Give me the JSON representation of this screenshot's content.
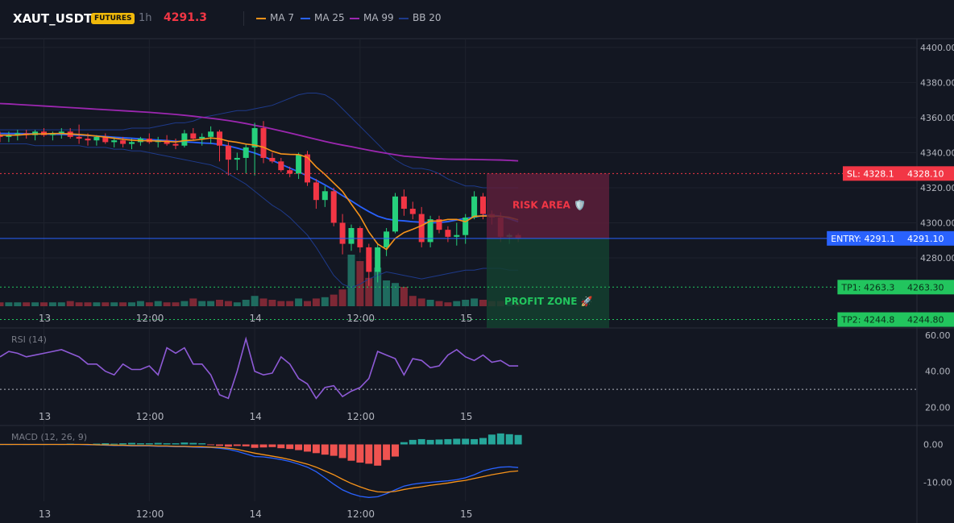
{
  "header": {
    "symbol": "XAUT_USDT",
    "badge": "FUTURES",
    "timeframe": "1h",
    "price": "4291.3",
    "legend": [
      {
        "label": "MA 7",
        "color": "#f7931a"
      },
      {
        "label": "MA 25",
        "color": "#2962ff"
      },
      {
        "label": "MA 99",
        "color": "#9c27b0"
      },
      {
        "label": "BB 20",
        "color": "#1e3a8a"
      }
    ]
  },
  "colors": {
    "up": "#26d07c",
    "down": "#f23645",
    "vol_up": "#1f6b5f",
    "vol_down": "#7d2835",
    "bg": "#131722"
  },
  "chart_data": [
    {
      "type": "candlestick",
      "panel": "price",
      "ylim": [
        4240,
        4405
      ],
      "y_ticks": [
        "4400.00",
        "4380.00",
        "4360.00",
        "4340.00",
        "4320.00",
        "4300.00",
        "4280.00"
      ],
      "x_ticks": [
        "13",
        "12:00",
        "14",
        "12:00",
        "15"
      ],
      "x_tick_index": [
        5,
        17,
        29,
        41,
        53
      ],
      "candles": [
        [
          4350,
          4352,
          4346,
          4349
        ],
        [
          4349,
          4352,
          4346,
          4350
        ],
        [
          4350,
          4353,
          4347,
          4351
        ],
        [
          4351,
          4353,
          4348,
          4350
        ],
        [
          4350,
          4353,
          4347,
          4352
        ],
        [
          4352,
          4354,
          4349,
          4350
        ],
        [
          4350,
          4352,
          4347,
          4351
        ],
        [
          4351,
          4354,
          4348,
          4352
        ],
        [
          4352,
          4354,
          4348,
          4349
        ],
        [
          4349,
          4356,
          4345,
          4348
        ],
        [
          4348,
          4351,
          4344,
          4347
        ],
        [
          4347,
          4350,
          4344,
          4349
        ],
        [
          4349,
          4351,
          4345,
          4346
        ],
        [
          4346,
          4349,
          4343,
          4347
        ],
        [
          4347,
          4349,
          4343,
          4345
        ],
        [
          4345,
          4348,
          4342,
          4346
        ],
        [
          4346,
          4349,
          4344,
          4348
        ],
        [
          4348,
          4351,
          4345,
          4346
        ],
        [
          4346,
          4349,
          4343,
          4347
        ],
        [
          4347,
          4350,
          4344,
          4345
        ],
        [
          4345,
          4348,
          4342,
          4344
        ],
        [
          4344,
          4353,
          4343,
          4351
        ],
        [
          4351,
          4354,
          4347,
          4348
        ],
        [
          4348,
          4351,
          4344,
          4349
        ],
        [
          4349,
          4355,
          4345,
          4352
        ],
        [
          4352,
          4353,
          4335,
          4344
        ],
        [
          4344,
          4346,
          4327,
          4336
        ],
        [
          4336,
          4340,
          4330,
          4337
        ],
        [
          4337,
          4345,
          4328,
          4343
        ],
        [
          4343,
          4357,
          4327,
          4354
        ],
        [
          4354,
          4358,
          4334,
          4337
        ],
        [
          4337,
          4340,
          4334,
          4335
        ],
        [
          4335,
          4337,
          4329,
          4330
        ],
        [
          4330,
          4332,
          4326,
          4328
        ],
        [
          4328,
          4340,
          4325,
          4339
        ],
        [
          4339,
          4341,
          4321,
          4323
        ],
        [
          4323,
          4325,
          4308,
          4313
        ],
        [
          4313,
          4321,
          4309,
          4318
        ],
        [
          4318,
          4320,
          4298,
          4300
        ],
        [
          4300,
          4305,
          4282,
          4288
        ],
        [
          4288,
          4299,
          4284,
          4297
        ],
        [
          4297,
          4298,
          4283,
          4286
        ],
        [
          4286,
          4288,
          4264,
          4272
        ],
        [
          4272,
          4288,
          4266,
          4286
        ],
        [
          4286,
          4297,
          4281,
          4295
        ],
        [
          4295,
          4317,
          4294,
          4315
        ],
        [
          4315,
          4319,
          4304,
          4308
        ],
        [
          4308,
          4312,
          4302,
          4305
        ],
        [
          4305,
          4309,
          4286,
          4289
        ],
        [
          4289,
          4304,
          4286,
          4302
        ],
        [
          4302,
          4304,
          4294,
          4296
        ],
        [
          4296,
          4298,
          4289,
          4292
        ],
        [
          4292,
          4300,
          4287,
          4293
        ],
        [
          4293,
          4305,
          4288,
          4303
        ],
        [
          4303,
          4318,
          4302,
          4315
        ],
        [
          4315,
          4317,
          4302,
          4305
        ],
        [
          4305,
          4307,
          4299,
          4303
        ],
        [
          4303,
          4306,
          4289,
          4292
        ],
        [
          4292,
          4294,
          4288,
          4293
        ],
        [
          4293,
          4294,
          4289,
          4291
        ]
      ],
      "ma7": [
        4350,
        4350,
        4350,
        4350.4,
        4350.6,
        4350.7,
        4350.9,
        4350.9,
        4350.7,
        4350.4,
        4350,
        4349.4,
        4348.9,
        4348.2,
        4347.6,
        4347.1,
        4346.8,
        4346.8,
        4346.6,
        4346.4,
        4346.1,
        4346.9,
        4347.1,
        4347.6,
        4348.4,
        4347.9,
        4346.6,
        4345.9,
        4344.9,
        4344.3,
        4343.1,
        4340.8,
        4339.3,
        4339,
        4338.9,
        4337.3,
        4331.9,
        4327.6,
        4322.7,
        4317.9,
        4310.7,
        4303.7,
        4294.7,
        4287.9,
        4284.8,
        4291.1,
        4294.4,
        4296.3,
        4298.4,
        4301,
        4301,
        4301.9,
        4301.9,
        4300.6,
        4303.7,
        4303.9,
        4303.8,
        4303.7,
        4303.1,
        4301.7
      ],
      "ma25": [
        4351,
        4350.9,
        4350.9,
        4350.8,
        4350.7,
        4350.6,
        4350.5,
        4350.4,
        4350.2,
        4350,
        4349.8,
        4349.5,
        4349.2,
        4348.8,
        4348.5,
        4348.2,
        4347.9,
        4347.5,
        4347.2,
        4346.9,
        4346.5,
        4346.2,
        4345.9,
        4345.5,
        4345.3,
        4344.7,
        4343.8,
        4342.6,
        4341.2,
        4339.8,
        4337.9,
        4335.6,
        4333.4,
        4331.2,
        4329.1,
        4326.7,
        4324.3,
        4321.6,
        4318.7,
        4315.5,
        4312.5,
        4309.3,
        4306.4,
        4303.8,
        4302.2,
        4301.4,
        4301.1,
        4300.6,
        4300.3,
        4300,
        4300.1,
        4300.7,
        4301.6,
        4302.5,
        4303.2,
        4304.1,
        4304.3,
        4303.8,
        4302.3,
        4300.6
      ],
      "ma99": [
        4368,
        4367.8,
        4367.5,
        4367.2,
        4366.9,
        4366.6,
        4366.3,
        4366,
        4365.7,
        4365.4,
        4365.1,
        4364.8,
        4364.5,
        4364.2,
        4363.9,
        4363.6,
        4363.3,
        4363,
        4362.6,
        4362.2,
        4361.8,
        4361.3,
        4360.8,
        4360.2,
        4359.6,
        4359,
        4358.3,
        4357.5,
        4356.6,
        4355.6,
        4354.6,
        4353.5,
        4352.4,
        4351.2,
        4350,
        4348.8,
        4347.6,
        4346.4,
        4345.3,
        4344.3,
        4343.4,
        4342.4,
        4341.4,
        4340.5,
        4339.6,
        4338.8,
        4338,
        4337.6,
        4337.2,
        4336.8,
        4336.5,
        4336.3,
        4336.2,
        4336.2,
        4336.1,
        4336,
        4335.9,
        4335.8,
        4335.6,
        4335.3
      ],
      "bb_upper": [
        4353,
        4353,
        4353,
        4353,
        4353,
        4353,
        4353,
        4353,
        4353,
        4353,
        4353,
        4353,
        4353,
        4353,
        4353,
        4354,
        4354,
        4354,
        4355,
        4356,
        4357,
        4357,
        4358,
        4360,
        4361,
        4362,
        4363,
        4364,
        4364,
        4365,
        4366,
        4367,
        4369,
        4371,
        4373,
        4374,
        4374,
        4373,
        4370,
        4365,
        4360,
        4355,
        4350,
        4345,
        4340,
        4336,
        4333,
        4331,
        4331,
        4330,
        4328,
        4325,
        4323,
        4321,
        4321,
        4320,
        4320,
        4320,
        4320,
        4320
      ],
      "bb_lower": [
        4345,
        4345,
        4345,
        4345,
        4344,
        4344,
        4344,
        4344,
        4344,
        4344,
        4343,
        4343,
        4343,
        4342,
        4342,
        4341,
        4341,
        4340,
        4339,
        4338,
        4337,
        4336,
        4335,
        4334,
        4333,
        4331,
        4328,
        4325,
        4322,
        4318,
        4314,
        4310,
        4307,
        4303,
        4298,
        4293,
        4286,
        4278,
        4270,
        4265,
        4263,
        4265,
        4268,
        4270,
        4272,
        4271,
        4270,
        4269,
        4268,
        4269,
        4270,
        4271,
        4272,
        4273,
        4273,
        4274,
        4274,
        4274,
        4273,
        4273
      ],
      "volume": [
        3,
        3,
        3,
        3,
        3,
        3,
        3,
        3,
        4,
        3,
        3,
        3,
        3,
        3,
        3,
        3,
        4,
        3,
        4,
        3,
        3,
        4,
        6,
        4,
        4,
        5,
        4,
        3,
        5,
        8,
        6,
        5,
        4,
        4,
        6,
        4,
        6,
        7,
        9,
        13,
        40,
        35,
        22,
        30,
        20,
        18,
        15,
        8,
        6,
        5,
        4,
        3,
        4,
        5,
        6,
        5,
        4,
        4,
        3,
        3
      ],
      "levels": [
        {
          "name": "SL",
          "value": 4328.1,
          "label": "SL: 4328.1",
          "price": "4328.10",
          "color": "#f23645",
          "style": "dotted"
        },
        {
          "name": "ENTRY",
          "value": 4291.1,
          "label": "ENTRY: 4291.1",
          "price": "4291.10",
          "color": "#2962ff",
          "style": "solid"
        },
        {
          "name": "TP1",
          "value": 4263.3,
          "label": "TP1: 4263.3",
          "price": "4263.30",
          "color": "#22c55e",
          "style": "dotted"
        },
        {
          "name": "TP2",
          "value": 4244.8,
          "label": "TP2: 4244.8",
          "price": "4244.80",
          "color": "#22c55e",
          "style": "dotted"
        }
      ],
      "risk_label": "RISK AREA 🛡️",
      "profit_label": "PROFIT ZONE 🚀"
    },
    {
      "type": "line",
      "panel": "rsi",
      "title": "RSI (14)",
      "ylim": [
        18,
        64
      ],
      "y_ticks": [
        "60.00",
        "40.00",
        "20.00"
      ],
      "level": 30,
      "x_ticks": [
        "13",
        "12:00",
        "14",
        "12:00",
        "15"
      ],
      "values": [
        48,
        51,
        50,
        48,
        49,
        50,
        51,
        52,
        50,
        48,
        44,
        44,
        40,
        38,
        44,
        41,
        41,
        43,
        38,
        53,
        50,
        53,
        44,
        44,
        38,
        27,
        25,
        40,
        58,
        40,
        38,
        39,
        48,
        44,
        36,
        33,
        25,
        31,
        32,
        26,
        29,
        31,
        36,
        51,
        49,
        47,
        38,
        47,
        46,
        42,
        43,
        49,
        52,
        48,
        46,
        49,
        45,
        46,
        43,
        43
      ]
    },
    {
      "type": "bar",
      "panel": "macd",
      "title": "MACD (12, 26, 9)",
      "ylim": [
        -15,
        5
      ],
      "y_ticks": [
        "0.00",
        "-10.00"
      ],
      "x_ticks": [
        "13",
        "12:00",
        "14",
        "12:00",
        "15"
      ],
      "histogram": [
        0,
        0,
        0.1,
        0,
        0.1,
        0,
        0.1,
        0,
        0.2,
        0.1,
        0.1,
        0.2,
        0.3,
        0.2,
        0.3,
        0.4,
        0.3,
        0.3,
        0.4,
        0.3,
        0.3,
        0.5,
        0.4,
        0.3,
        -0.2,
        -0.4,
        -0.6,
        -0.4,
        -0.5,
        -0.9,
        -0.8,
        -0.7,
        -1.0,
        -1.2,
        -1.5,
        -1.9,
        -2.3,
        -2.7,
        -3.0,
        -3.6,
        -4.3,
        -4.8,
        -5.1,
        -5.6,
        -4.1,
        -3.2,
        0.6,
        1.2,
        1.4,
        1.2,
        1.3,
        1.4,
        1.5,
        1.5,
        1.4,
        1.7,
        2.6,
        2.9,
        2.7,
        2.5
      ],
      "macd": [
        0,
        0,
        0,
        0,
        0,
        0,
        0,
        0,
        0,
        0,
        -0.1,
        -0.1,
        -0.2,
        -0.3,
        -0.3,
        -0.4,
        -0.4,
        -0.4,
        -0.5,
        -0.5,
        -0.6,
        -0.6,
        -0.7,
        -0.8,
        -0.8,
        -1.0,
        -1.3,
        -1.8,
        -2.5,
        -3.2,
        -3.3,
        -3.6,
        -4.0,
        -4.5,
        -5.2,
        -6.0,
        -7.2,
        -8.8,
        -10.5,
        -12.0,
        -13.0,
        -13.7,
        -14.0,
        -13.8,
        -13.0,
        -12.0,
        -11.0,
        -10.5,
        -10.2,
        -10.0,
        -9.8,
        -9.6,
        -9.3,
        -8.8,
        -8.0,
        -7.0,
        -6.4,
        -6.0,
        -5.9,
        -6.1
      ],
      "signal": [
        0,
        0,
        0,
        0,
        0,
        0,
        0,
        0,
        0,
        0,
        0,
        -0.1,
        -0.1,
        -0.2,
        -0.2,
        -0.3,
        -0.3,
        -0.3,
        -0.4,
        -0.4,
        -0.5,
        -0.5,
        -0.6,
        -0.6,
        -0.7,
        -0.8,
        -1.0,
        -1.3,
        -1.8,
        -2.3,
        -2.7,
        -3.1,
        -3.5,
        -4.0,
        -4.6,
        -5.2,
        -6.0,
        -7.0,
        -8.0,
        -9.2,
        -10.3,
        -11.2,
        -12.0,
        -12.5,
        -12.6,
        -12.4,
        -11.9,
        -11.5,
        -11.2,
        -10.8,
        -10.5,
        -10.2,
        -9.8,
        -9.5,
        -9.0,
        -8.5,
        -8.0,
        -7.6,
        -7.2,
        -7.0
      ]
    }
  ]
}
